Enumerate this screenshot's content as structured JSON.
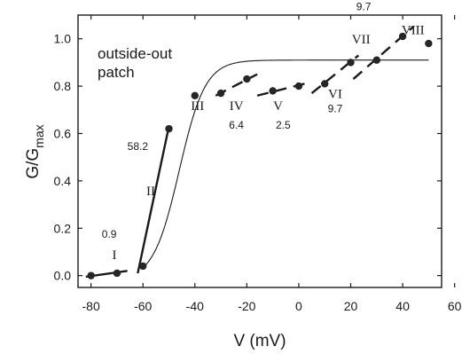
{
  "chart_data": {
    "type": "scatter",
    "xlabel": "V (mV)",
    "ylabel": "G/G",
    "ylabel_sub": "max",
    "annotation": "outside-out\npatch",
    "xlim": [
      -85,
      55
    ],
    "ylim": [
      -0.05,
      1.1
    ],
    "xticks": [
      -80,
      -60,
      -40,
      -20,
      0,
      20,
      40,
      60
    ],
    "yticks": [
      0.0,
      0.2,
      0.4,
      0.6,
      0.8,
      1.0
    ],
    "xtick_labels": [
      "-80",
      "-60",
      "-40",
      "-20",
      "0",
      "20",
      "40",
      "60"
    ],
    "ytick_labels": [
      "0.0",
      "0.2",
      "0.4",
      "0.6",
      "0.8",
      "1.0"
    ],
    "grid": false,
    "points": [
      {
        "x": -80,
        "y": 0.0
      },
      {
        "x": -70,
        "y": 0.01
      },
      {
        "x": -60,
        "y": 0.04
      },
      {
        "x": -50,
        "y": 0.62
      },
      {
        "x": -40,
        "y": 0.76
      },
      {
        "x": -30,
        "y": 0.77
      },
      {
        "x": -20,
        "y": 0.83
      },
      {
        "x": -10,
        "y": 0.78
      },
      {
        "x": 0,
        "y": 0.8
      },
      {
        "x": 10,
        "y": 0.81
      },
      {
        "x": 20,
        "y": 0.9
      },
      {
        "x": 30,
        "y": 0.91
      },
      {
        "x": 40,
        "y": 1.01
      },
      {
        "x": 50,
        "y": 0.98
      }
    ],
    "segments": [
      {
        "label": "I",
        "slope_label": "0.9",
        "style": "solid",
        "x": [
          -82,
          -66
        ],
        "y": [
          -0.005,
          0.02
        ]
      },
      {
        "label": "II",
        "slope_label": "58.2",
        "style": "solid",
        "x": [
          -62,
          -50
        ],
        "y": [
          0.01,
          0.63
        ]
      },
      {
        "label": "IV",
        "slope_label": "6.4",
        "style": "dashed",
        "x": [
          -32,
          -16
        ],
        "y": [
          0.76,
          0.85
        ]
      },
      {
        "label": "V",
        "slope_label": "2.5",
        "style": "dashed",
        "x": [
          -16,
          4
        ],
        "y": [
          0.76,
          0.815
        ]
      },
      {
        "label": "VI",
        "slope_label": "9.7",
        "style": "dashed",
        "x": [
          5,
          23
        ],
        "y": [
          0.77,
          0.93
        ]
      },
      {
        "label": "VII",
        "slope_label": "9.7",
        "style": "dashed",
        "x": [
          21,
          44
        ],
        "y": [
          0.83,
          1.05
        ]
      }
    ],
    "point_labels": [
      {
        "label": "III"
      },
      {
        "label": "VIII"
      }
    ],
    "fit_curve": {
      "type": "boltzmann",
      "v_half": -46,
      "slope": 5,
      "baseline": -0.02,
      "max": 0.91,
      "x_range": [
        -60,
        50
      ]
    }
  }
}
